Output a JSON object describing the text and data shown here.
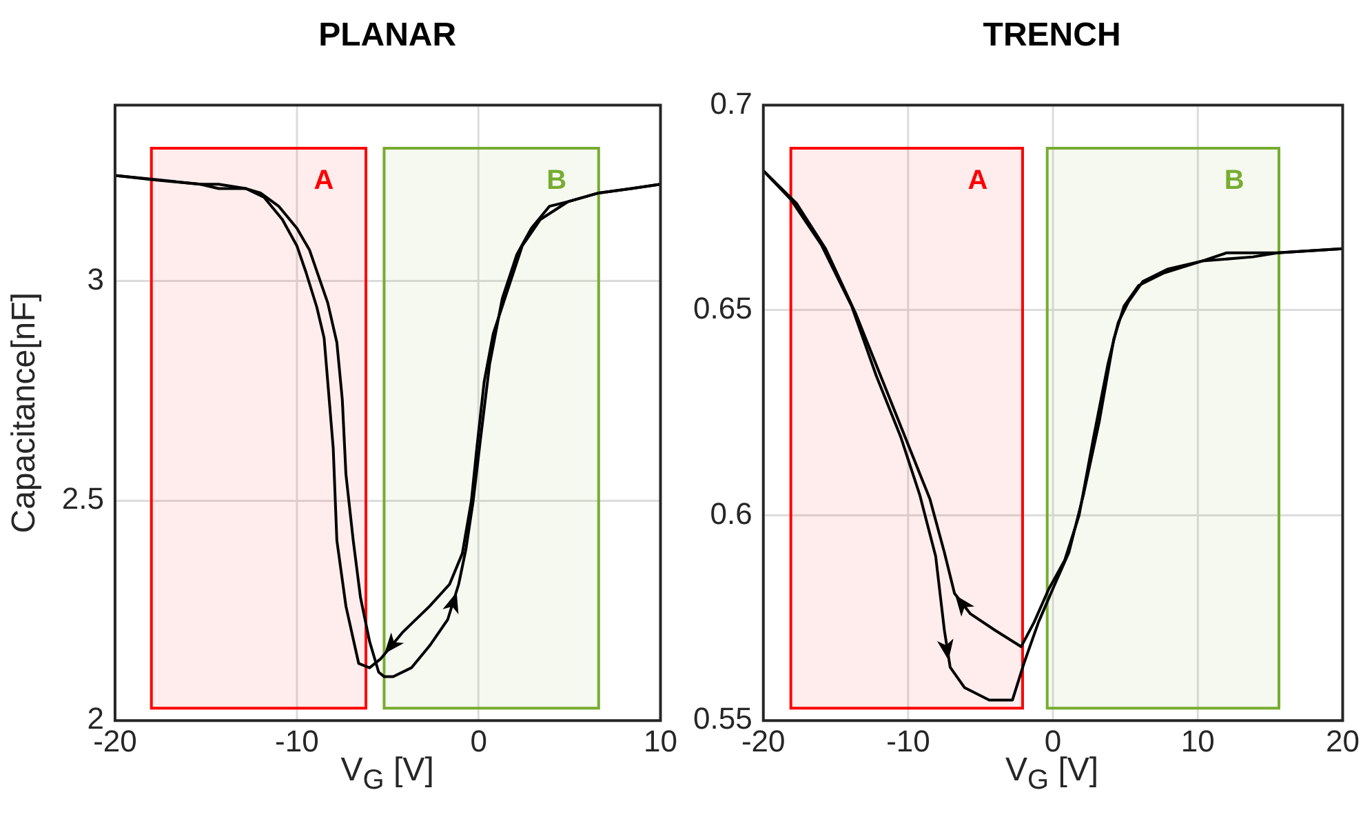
{
  "chart_data": [
    {
      "type": "line",
      "title": "PLANAR",
      "xlabel": "V$_{G}$ [V]",
      "ylabel": "Capacitance[nF]",
      "xlim": [
        -20,
        10
      ],
      "ylim": [
        2,
        3.4
      ],
      "xticks": [
        -20,
        -10,
        0,
        10
      ],
      "yticks": [
        2,
        2.5,
        3
      ],
      "grid": true,
      "legend": false,
      "marker": "none",
      "line_style": "solid",
      "series": [
        {
          "color": "#000000",
          "x": [
            -20,
            -17.9,
            -15.3,
            -14.3,
            -12.8,
            -11.8,
            -10.8,
            -10,
            -9.5,
            -8.9,
            -8.5,
            -8.3,
            -8,
            -7.8,
            -7.3,
            -6.6,
            -6,
            -5.4,
            -4.2,
            -2.7,
            -1.6,
            -0.9,
            -0.4,
            -0.1,
            0.3,
            0.8,
            1.6,
            2.4,
            3.4,
            4.9,
            6.6,
            8.4,
            10
          ],
          "values": [
            3.24,
            3.23,
            3.22,
            3.21,
            3.21,
            3.19,
            3.14,
            3.08,
            3.02,
            2.94,
            2.87,
            2.77,
            2.62,
            2.41,
            2.26,
            2.13,
            2.12,
            2.14,
            2.2,
            2.26,
            2.31,
            2.38,
            2.5,
            2.62,
            2.77,
            2.88,
            2.98,
            3.08,
            3.14,
            3.18,
            3.2,
            3.21,
            3.22
          ]
        },
        {
          "color": "#000000",
          "x": [
            -20,
            -15.3,
            -14.3,
            -12.8,
            -12,
            -11,
            -10,
            -9.3,
            -8.8,
            -8.3,
            -7.8,
            -7.5,
            -7.3,
            -6.9,
            -6.5,
            -6,
            -5.5,
            -5.2,
            -4.7,
            -3.7,
            -2.7,
            -1.7,
            -1.1,
            -0.7,
            -0.3,
            0.1,
            0.6,
            1.3,
            2.1,
            2.9,
            3.9,
            4.9,
            6.6,
            8.4,
            10
          ],
          "values": [
            3.24,
            3.22,
            3.22,
            3.21,
            3.2,
            3.17,
            3.12,
            3.07,
            3.01,
            2.95,
            2.86,
            2.73,
            2.56,
            2.41,
            2.28,
            2.18,
            2.11,
            2.1,
            2.1,
            2.12,
            2.17,
            2.23,
            2.31,
            2.39,
            2.5,
            2.64,
            2.81,
            2.96,
            3.06,
            3.12,
            3.17,
            3.18,
            3.2,
            3.21,
            3.22
          ]
        }
      ],
      "bands": [
        {
          "axis": "x",
          "from": -18,
          "to": -6.2,
          "label": "A",
          "color": "#ff0000"
        },
        {
          "axis": "x",
          "from": -5.2,
          "to": 6.6,
          "label": "B",
          "color": "#77ac30"
        }
      ]
    },
    {
      "type": "line",
      "title": "TRENCH",
      "xlabel": "V$_{G}$ [V]",
      "xlim": [
        -20,
        20
      ],
      "ylim": [
        0.55,
        0.7
      ],
      "xticks": [
        -20,
        -10,
        0,
        10,
        20
      ],
      "yticks": [
        0.55,
        0.6,
        0.65,
        0.7
      ],
      "grid": true,
      "legend": false,
      "marker": "none",
      "line_style": "solid",
      "series": [
        {
          "color": "#000000",
          "x": [
            -20,
            -18.1,
            -16,
            -13.9,
            -12.2,
            -10.5,
            -9.2,
            -8.1,
            -7.5,
            -7.1,
            -6.1,
            -4.4,
            -2.8,
            -2,
            -1,
            0.1,
            1.1,
            2.1,
            3.2,
            4.2,
            4.9,
            5.9,
            7.6,
            10.3,
            12,
            15.5,
            20
          ],
          "values": [
            0.684,
            0.677,
            0.666,
            0.651,
            0.634,
            0.619,
            0.605,
            0.59,
            0.572,
            0.563,
            0.558,
            0.555,
            0.555,
            0.564,
            0.574,
            0.583,
            0.591,
            0.605,
            0.623,
            0.643,
            0.651,
            0.656,
            0.659,
            0.662,
            0.664,
            0.664,
            0.665
          ]
        },
        {
          "color": "#000000",
          "x": [
            -20,
            -17.7,
            -15.7,
            -13.6,
            -11.9,
            -10.2,
            -8.5,
            -7.5,
            -6.8,
            -5.7,
            -4,
            -2.2,
            -1.3,
            -0.3,
            0.8,
            1.8,
            2.8,
            3.8,
            4.5,
            5.2,
            6.2,
            7.9,
            10.3,
            13.8,
            15.5,
            20
          ],
          "values": [
            0.684,
            0.676,
            0.665,
            0.649,
            0.634,
            0.619,
            0.604,
            0.591,
            0.581,
            0.576,
            0.572,
            0.568,
            0.574,
            0.582,
            0.589,
            0.6,
            0.619,
            0.637,
            0.647,
            0.652,
            0.657,
            0.66,
            0.662,
            0.663,
            0.664,
            0.665
          ]
        }
      ],
      "bands": [
        {
          "axis": "x",
          "from": -18.1,
          "to": -2.1,
          "label": "A",
          "color": "#ff0000"
        },
        {
          "axis": "x",
          "from": -0.4,
          "to": 15.6,
          "label": "B",
          "color": "#77ac30"
        }
      ]
    }
  ]
}
